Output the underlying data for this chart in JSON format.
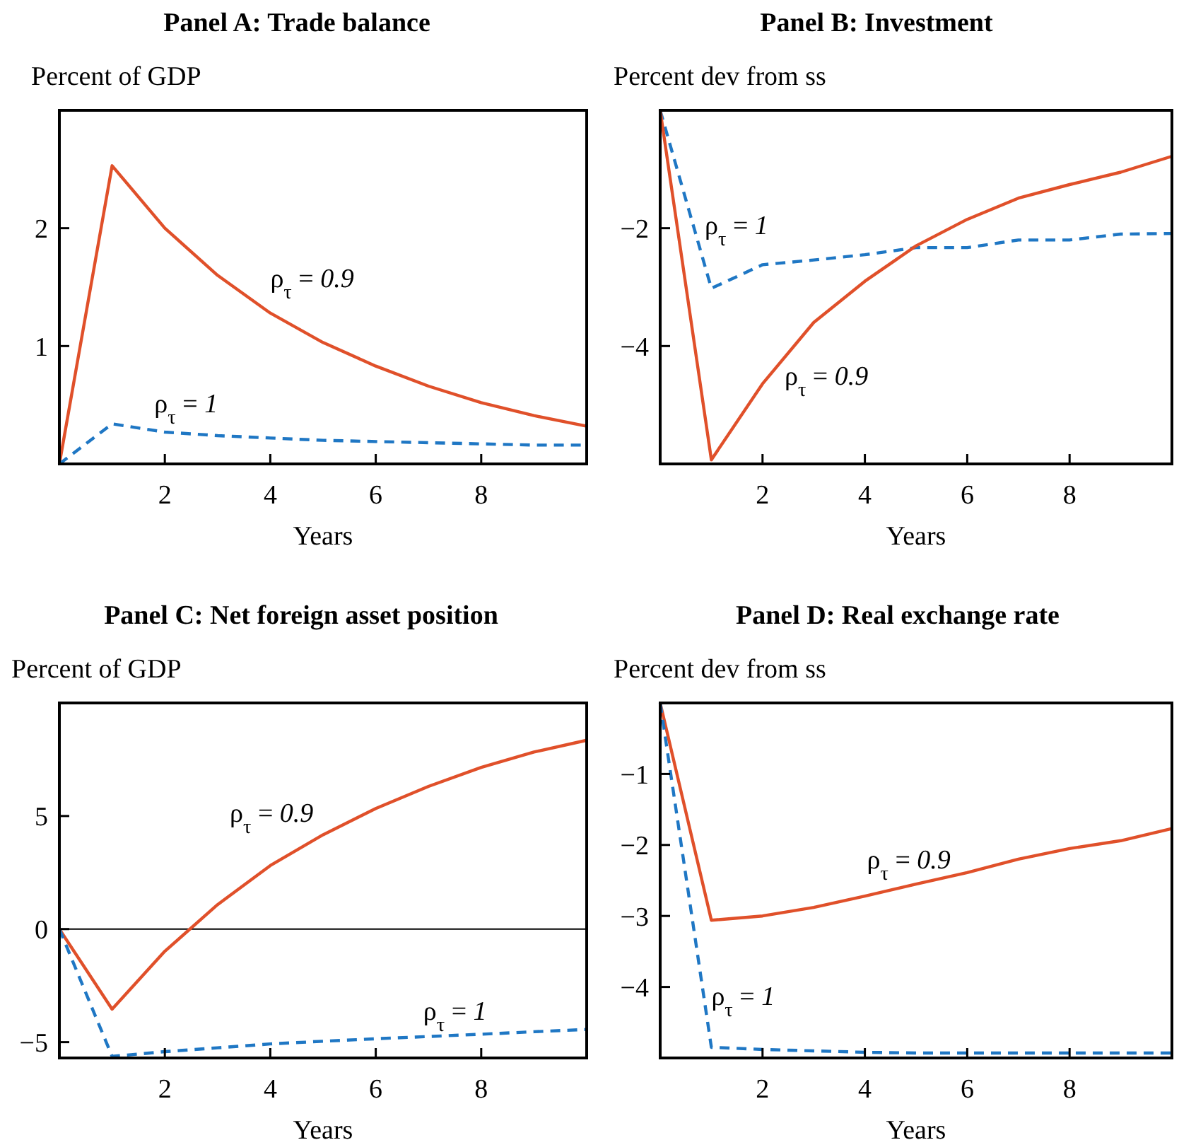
{
  "chart_data": [
    {
      "type": "line",
      "title": "Panel A: Trade balance",
      "ylabel": "Percent of GDP",
      "xlabel": "Years",
      "x": [
        0,
        1,
        2,
        3,
        4,
        5,
        6,
        7,
        8,
        9,
        10
      ],
      "xlim": [
        0,
        10
      ],
      "xticks": [
        2,
        4,
        6,
        8
      ],
      "ylim": [
        0,
        3
      ],
      "yticks": [
        1,
        2
      ],
      "series": [
        {
          "name": "ρ$_{τ}$ = 0.9",
          "color": "#e0502a",
          "line_style": "solid",
          "values": [
            0,
            2.53,
            2.0,
            1.6,
            1.28,
            1.03,
            0.83,
            0.66,
            0.52,
            0.41,
            0.32
          ]
        },
        {
          "name": "ρ$_{τ}$ = 1",
          "color": "#1f77c4",
          "line_style": "dashed",
          "values": [
            0,
            0.34,
            0.27,
            0.24,
            0.22,
            0.2,
            0.19,
            0.18,
            0.17,
            0.16,
            0.16
          ]
        }
      ]
    },
    {
      "type": "line",
      "title": "Panel B: Investment",
      "ylabel": "Percent dev from ss",
      "xlabel": "Years",
      "x": [
        0,
        1,
        2,
        3,
        4,
        5,
        6,
        7,
        8,
        9,
        10
      ],
      "xlim": [
        0,
        10
      ],
      "xticks": [
        2,
        4,
        6,
        8
      ],
      "ylim": [
        -6,
        0
      ],
      "yticks": [
        {
          "value": -2,
          "label": "−2"
        },
        {
          "value": -4,
          "label": "−4"
        }
      ],
      "series": [
        {
          "name": "ρ$_{τ}$ = 1",
          "color": "#1f77c4",
          "line_style": "dashed",
          "values": [
            0,
            -3.02,
            -2.62,
            -2.54,
            -2.45,
            -2.33,
            -2.33,
            -2.2,
            -2.2,
            -2.1,
            -2.09
          ]
        },
        {
          "name": "ρ$_{τ}$ = 0.9",
          "color": "#e0502a",
          "line_style": "solid",
          "values": [
            0,
            -5.93,
            -4.64,
            -3.6,
            -2.9,
            -2.3,
            -1.85,
            -1.49,
            -1.26,
            -1.05,
            -0.78
          ]
        }
      ]
    },
    {
      "type": "line",
      "title": "Panel C: Net foreign asset position",
      "ylabel": "Percent of GDP",
      "xlabel": "Years",
      "x": [
        0,
        1,
        2,
        3,
        4,
        5,
        6,
        7,
        8,
        9,
        10
      ],
      "xlim": [
        0,
        10
      ],
      "xticks": [
        2,
        4,
        6,
        8
      ],
      "ylim": [
        -5.7,
        10
      ],
      "yticks": [
        {
          "value": -5,
          "label": "−5"
        },
        0,
        5
      ],
      "ref_lines": [
        {
          "axis": "y",
          "value": 0,
          "color": "#000000"
        }
      ],
      "series": [
        {
          "name": "ρ$_{τ}$ = 0.9",
          "color": "#e0502a",
          "line_style": "solid",
          "values": [
            0,
            -3.54,
            -0.98,
            1.08,
            2.81,
            4.17,
            5.33,
            6.31,
            7.15,
            7.83,
            8.35
          ]
        },
        {
          "name": "ρ$_{τ}$ = 1",
          "color": "#1f77c4",
          "line_style": "dashed",
          "values": [
            0,
            -5.63,
            -5.42,
            -5.25,
            -5.08,
            -4.96,
            -4.85,
            -4.75,
            -4.65,
            -4.54,
            -4.44
          ]
        }
      ]
    },
    {
      "type": "line",
      "title": "Panel D: Real exchange rate",
      "ylabel": "Percent dev from ss",
      "xlabel": "Years",
      "x": [
        0,
        1,
        2,
        3,
        4,
        5,
        6,
        7,
        8,
        9,
        10
      ],
      "xlim": [
        0,
        10
      ],
      "xticks": [
        2,
        4,
        6,
        8
      ],
      "ylim": [
        -5,
        0
      ],
      "yticks": [
        {
          "value": -1,
          "label": "−1"
        },
        {
          "value": -2,
          "label": "−2"
        },
        {
          "value": -3,
          "label": "−3"
        },
        {
          "value": -4,
          "label": "−4"
        }
      ],
      "series": [
        {
          "name": "ρ$_{τ}$ = 0.9",
          "color": "#e0502a",
          "line_style": "solid",
          "values": [
            0,
            -3.06,
            -3.0,
            -2.88,
            -2.72,
            -2.55,
            -2.39,
            -2.2,
            -2.05,
            -1.94,
            -1.77
          ]
        },
        {
          "name": "ρ$_{τ}$ = 1",
          "color": "#1f77c4",
          "line_style": "dashed",
          "values": [
            0,
            -4.85,
            -4.88,
            -4.9,
            -4.92,
            -4.93,
            -4.93,
            -4.93,
            -4.93,
            -4.93,
            -4.93
          ]
        }
      ]
    }
  ]
}
